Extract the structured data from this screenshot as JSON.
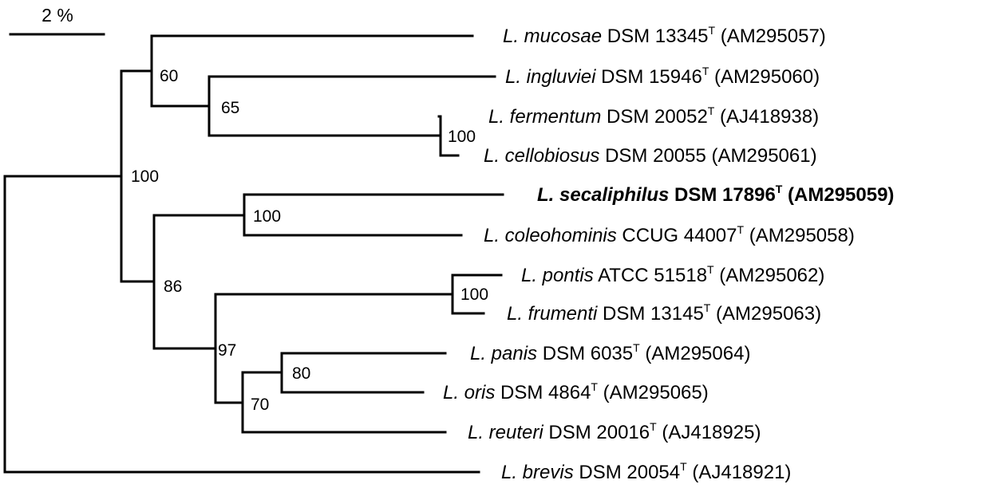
{
  "scale_bar": {
    "label": "2 %"
  },
  "taxa": [
    {
      "genus": "L.",
      "species": "mucosae",
      "strain": "DSM 13345",
      "type_strain": "T",
      "accession": "(AM295057)",
      "bold": false
    },
    {
      "genus": "L.",
      "species": "ingluviei",
      "strain": "DSM 15946",
      "type_strain": "T",
      "accession": "(AM295060)",
      "bold": false
    },
    {
      "genus": "L.",
      "species": "fermentum",
      "strain": "DSM 20052",
      "type_strain": "T",
      "accession": "(AJ418938)",
      "bold": false
    },
    {
      "genus": "L.",
      "species": "cellobiosus",
      "strain": "DSM 20055",
      "type_strain": "",
      "accession": "(AM295061)",
      "bold": false
    },
    {
      "genus": "L.",
      "species": "secaliphilus",
      "strain": "DSM 17896",
      "type_strain": "T",
      "accession": "(AM295059)",
      "bold": true
    },
    {
      "genus": "L.",
      "species": "coleohominis",
      "strain": "CCUG 44007",
      "type_strain": "T",
      "accession": "(AM295058)",
      "bold": false
    },
    {
      "genus": "L.",
      "species": "pontis",
      "strain": "ATCC 51518",
      "type_strain": "T",
      "accession": "(AM295062)",
      "bold": false
    },
    {
      "genus": "L.",
      "species": "frumenti",
      "strain": "DSM 13145",
      "type_strain": "T",
      "accession": "(AM295063)",
      "bold": false
    },
    {
      "genus": "L.",
      "species": "panis",
      "strain": "DSM 6035",
      "type_strain": "T",
      "accession": "(AM295064)",
      "bold": false
    },
    {
      "genus": "L.",
      "species": "oris",
      "strain": "DSM 4864",
      "type_strain": "T",
      "accession": "(AM295065)",
      "bold": false
    },
    {
      "genus": "L.",
      "species": "reuteri",
      "strain": "DSM 20016",
      "type_strain": "T",
      "accession": "(AJ418925)",
      "bold": false
    },
    {
      "genus": "L.",
      "species": "brevis",
      "strain": "DSM 20054",
      "type_strain": "T",
      "accession": "(AJ418921)",
      "bold": false
    }
  ],
  "bootstrap_values": [
    "60",
    "65",
    "100",
    "100",
    "100",
    "86",
    "100",
    "97",
    "80",
    "70"
  ]
}
